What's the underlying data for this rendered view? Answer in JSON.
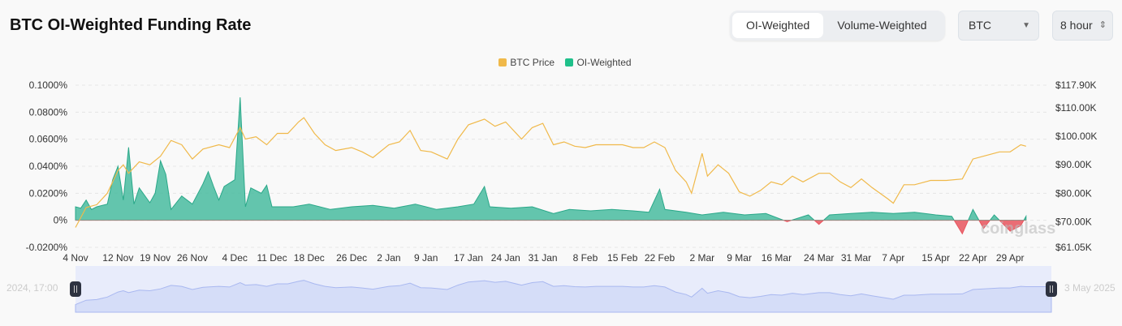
{
  "header": {
    "title": "BTC OI-Weighted Funding Rate"
  },
  "toggle": {
    "options": [
      "OI-Weighted",
      "Volume-Weighted"
    ],
    "selected": "OI-Weighted"
  },
  "symbol_select": {
    "value": "BTC"
  },
  "interval_select": {
    "value": "8 hour"
  },
  "navigator": {
    "start_label": "2024, 17:00",
    "end_label": "3 May 2025"
  },
  "watermark": "coinglass",
  "colors": {
    "price": "#f0b94a",
    "positive": "#3db89a",
    "negative": "#e8555e",
    "navigator": "#d5ddf8"
  },
  "chart_data": {
    "type": "line+area",
    "legend": [
      "BTC Price",
      "OI-Weighted"
    ],
    "legend_position": "top",
    "grid": true,
    "xlim": [
      "2024-11-04",
      "2025-05-06"
    ],
    "x_ticks": [
      "4 Nov",
      "12 Nov",
      "19 Nov",
      "26 Nov",
      "4 Dec",
      "11 Dec",
      "18 Dec",
      "26 Dec",
      "2 Jan",
      "9 Jan",
      "17 Jan",
      "24 Jan",
      "31 Jan",
      "8 Feb",
      "15 Feb",
      "22 Feb",
      "2 Mar",
      "9 Mar",
      "16 Mar",
      "24 Mar",
      "31 Mar",
      "7 Apr",
      "15 Apr",
      "22 Apr",
      "29 Apr"
    ],
    "x_tick_dates": [
      "2024-11-04",
      "2024-11-12",
      "2024-11-19",
      "2024-11-26",
      "2024-12-04",
      "2024-12-11",
      "2024-12-18",
      "2024-12-26",
      "2025-01-02",
      "2025-01-09",
      "2025-01-17",
      "2025-01-24",
      "2025-01-31",
      "2025-02-08",
      "2025-02-15",
      "2025-02-22",
      "2025-03-02",
      "2025-03-09",
      "2025-03-16",
      "2025-03-24",
      "2025-03-31",
      "2025-04-07",
      "2025-04-15",
      "2025-04-22",
      "2025-04-29"
    ],
    "left_axis": {
      "ylim": [
        -0.02,
        0.1
      ],
      "ticks": [
        "0.1000%",
        "0.0800%",
        "0.0600%",
        "0.0400%",
        "0.0200%",
        "0%",
        "-0.0200%"
      ],
      "tick_values": [
        0.1,
        0.08,
        0.06,
        0.04,
        0.02,
        0,
        -0.02
      ]
    },
    "right_axis": {
      "ylim": [
        61.05,
        117.9
      ],
      "ticks": [
        "$117.90K",
        "$110.00K",
        "$100.00K",
        "$90.00K",
        "$80.00K",
        "$70.00K",
        "$61.05K"
      ],
      "tick_values": [
        117.9,
        110,
        100,
        90,
        80,
        70,
        61.05
      ]
    },
    "series": [
      {
        "name": "BTC Price",
        "unit": "K USD",
        "points": [
          [
            "2024-11-04",
            68
          ],
          [
            "2024-11-06",
            75
          ],
          [
            "2024-11-08",
            76
          ],
          [
            "2024-11-10",
            80
          ],
          [
            "2024-11-12",
            88
          ],
          [
            "2024-11-13",
            90
          ],
          [
            "2024-11-14",
            87
          ],
          [
            "2024-11-16",
            91
          ],
          [
            "2024-11-18",
            90
          ],
          [
            "2024-11-20",
            93
          ],
          [
            "2024-11-22",
            98.5
          ],
          [
            "2024-11-24",
            97
          ],
          [
            "2024-11-26",
            92
          ],
          [
            "2024-11-28",
            95.5
          ],
          [
            "2024-12-01",
            97
          ],
          [
            "2024-12-03",
            96
          ],
          [
            "2024-12-05",
            103
          ],
          [
            "2024-12-06",
            99
          ],
          [
            "2024-12-08",
            99.8
          ],
          [
            "2024-12-10",
            97
          ],
          [
            "2024-12-12",
            101
          ],
          [
            "2024-12-14",
            101
          ],
          [
            "2024-12-16",
            105
          ],
          [
            "2024-12-17",
            106.5
          ],
          [
            "2024-12-19",
            101
          ],
          [
            "2024-12-21",
            97
          ],
          [
            "2024-12-23",
            95
          ],
          [
            "2024-12-26",
            96
          ],
          [
            "2024-12-28",
            94.5
          ],
          [
            "2024-12-30",
            92.5
          ],
          [
            "2025-01-02",
            97
          ],
          [
            "2025-01-04",
            98
          ],
          [
            "2025-01-06",
            102
          ],
          [
            "2025-01-08",
            95
          ],
          [
            "2025-01-10",
            94.5
          ],
          [
            "2025-01-13",
            92
          ],
          [
            "2025-01-15",
            99
          ],
          [
            "2025-01-17",
            104
          ],
          [
            "2025-01-20",
            106
          ],
          [
            "2025-01-22",
            103.5
          ],
          [
            "2025-01-24",
            105
          ],
          [
            "2025-01-27",
            99
          ],
          [
            "2025-01-29",
            103
          ],
          [
            "2025-01-31",
            104.5
          ],
          [
            "2025-02-02",
            97
          ],
          [
            "2025-02-04",
            98
          ],
          [
            "2025-02-06",
            96.5
          ],
          [
            "2025-02-08",
            96
          ],
          [
            "2025-02-10",
            97
          ],
          [
            "2025-02-12",
            97
          ],
          [
            "2025-02-15",
            97
          ],
          [
            "2025-02-17",
            96
          ],
          [
            "2025-02-19",
            96
          ],
          [
            "2025-02-21",
            98
          ],
          [
            "2025-02-23",
            96
          ],
          [
            "2025-02-25",
            88
          ],
          [
            "2025-02-27",
            84
          ],
          [
            "2025-02-28",
            80
          ],
          [
            "2025-03-02",
            94
          ],
          [
            "2025-03-03",
            86
          ],
          [
            "2025-03-05",
            90
          ],
          [
            "2025-03-07",
            87
          ],
          [
            "2025-03-09",
            80.5
          ],
          [
            "2025-03-11",
            79
          ],
          [
            "2025-03-13",
            81
          ],
          [
            "2025-03-15",
            84
          ],
          [
            "2025-03-17",
            83
          ],
          [
            "2025-03-19",
            86
          ],
          [
            "2025-03-21",
            84
          ],
          [
            "2025-03-24",
            87
          ],
          [
            "2025-03-26",
            87
          ],
          [
            "2025-03-28",
            84
          ],
          [
            "2025-03-30",
            82
          ],
          [
            "2025-04-01",
            85
          ],
          [
            "2025-04-03",
            82
          ],
          [
            "2025-04-06",
            78
          ],
          [
            "2025-04-07",
            76.5
          ],
          [
            "2025-04-09",
            83
          ],
          [
            "2025-04-11",
            83
          ],
          [
            "2025-04-14",
            84.5
          ],
          [
            "2025-04-17",
            84.5
          ],
          [
            "2025-04-20",
            85
          ],
          [
            "2025-04-22",
            92
          ],
          [
            "2025-04-24",
            93
          ],
          [
            "2025-04-27",
            94.5
          ],
          [
            "2025-04-29",
            94.5
          ],
          [
            "2025-05-01",
            97
          ],
          [
            "2025-05-02",
            96.5
          ]
        ]
      },
      {
        "name": "OI-Weighted",
        "unit": "%",
        "points": [
          [
            "2024-11-04",
            0.01
          ],
          [
            "2024-11-05",
            0.009
          ],
          [
            "2024-11-06",
            0.015
          ],
          [
            "2024-11-07",
            0.008
          ],
          [
            "2024-11-08",
            0.01
          ],
          [
            "2024-11-10",
            0.012
          ],
          [
            "2024-11-11",
            0.03
          ],
          [
            "2024-11-12",
            0.04
          ],
          [
            "2024-11-13",
            0.015
          ],
          [
            "2024-11-14",
            0.054
          ],
          [
            "2024-11-15",
            0.012
          ],
          [
            "2024-11-16",
            0.024
          ],
          [
            "2024-11-18",
            0.013
          ],
          [
            "2024-11-19",
            0.02
          ],
          [
            "2024-11-20",
            0.044
          ],
          [
            "2024-11-21",
            0.034
          ],
          [
            "2024-11-22",
            0.008
          ],
          [
            "2024-11-24",
            0.018
          ],
          [
            "2024-11-26",
            0.012
          ],
          [
            "2024-11-28",
            0.027
          ],
          [
            "2024-11-29",
            0.036
          ],
          [
            "2024-11-30",
            0.025
          ],
          [
            "2024-12-01",
            0.015
          ],
          [
            "2024-12-02",
            0.025
          ],
          [
            "2024-12-04",
            0.03
          ],
          [
            "2024-12-05",
            0.091
          ],
          [
            "2024-12-06",
            0.01
          ],
          [
            "2024-12-07",
            0.024
          ],
          [
            "2024-12-09",
            0.02
          ],
          [
            "2024-12-10",
            0.026
          ],
          [
            "2024-12-11",
            0.01
          ],
          [
            "2024-12-15",
            0.01
          ],
          [
            "2024-12-18",
            0.012
          ],
          [
            "2024-12-22",
            0.008
          ],
          [
            "2024-12-26",
            0.01
          ],
          [
            "2024-12-30",
            0.011
          ],
          [
            "2025-01-03",
            0.009
          ],
          [
            "2025-01-07",
            0.012
          ],
          [
            "2025-01-11",
            0.008
          ],
          [
            "2025-01-15",
            0.01
          ],
          [
            "2025-01-18",
            0.012
          ],
          [
            "2025-01-20",
            0.025
          ],
          [
            "2025-01-21",
            0.01
          ],
          [
            "2025-01-25",
            0.009
          ],
          [
            "2025-01-29",
            0.01
          ],
          [
            "2025-02-02",
            0.005
          ],
          [
            "2025-02-05",
            0.008
          ],
          [
            "2025-02-09",
            0.007
          ],
          [
            "2025-02-13",
            0.008
          ],
          [
            "2025-02-17",
            0.007
          ],
          [
            "2025-02-20",
            0.006
          ],
          [
            "2025-02-22",
            0.023
          ],
          [
            "2025-02-23",
            0.008
          ],
          [
            "2025-02-27",
            0.006
          ],
          [
            "2025-03-02",
            0.004
          ],
          [
            "2025-03-06",
            0.006
          ],
          [
            "2025-03-10",
            0.004
          ],
          [
            "2025-03-14",
            0.005
          ],
          [
            "2025-03-18",
            -0.001
          ],
          [
            "2025-03-22",
            0.004
          ],
          [
            "2025-03-24",
            -0.003
          ],
          [
            "2025-03-26",
            0.004
          ],
          [
            "2025-03-30",
            0.005
          ],
          [
            "2025-04-03",
            0.006
          ],
          [
            "2025-04-07",
            0.005
          ],
          [
            "2025-04-11",
            0.006
          ],
          [
            "2025-04-15",
            0.004
          ],
          [
            "2025-04-18",
            0.003
          ],
          [
            "2025-04-20",
            -0.01
          ],
          [
            "2025-04-22",
            0.008
          ],
          [
            "2025-04-24",
            -0.006
          ],
          [
            "2025-04-26",
            0.004
          ],
          [
            "2025-04-29",
            -0.008
          ],
          [
            "2025-05-01",
            -0.004
          ],
          [
            "2025-05-02",
            0.003
          ]
        ]
      }
    ]
  }
}
